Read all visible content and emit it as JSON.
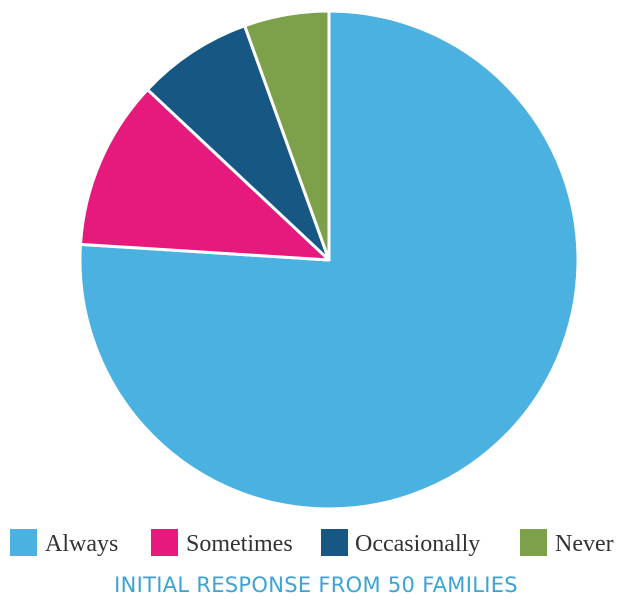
{
  "chart_data": {
    "type": "pie",
    "title": "INITIAL RESPONSE FROM 50 FAMILIES",
    "categories": [
      "Always",
      "Sometimes",
      "Occasionally",
      "Never"
    ],
    "values": [
      76,
      11,
      7.5,
      5.5
    ],
    "colors": [
      "#4AB1E0",
      "#E6197D",
      "#175784",
      "#7DA04A"
    ],
    "title_color": "#3BA3D6",
    "legend_position": "bottom"
  }
}
